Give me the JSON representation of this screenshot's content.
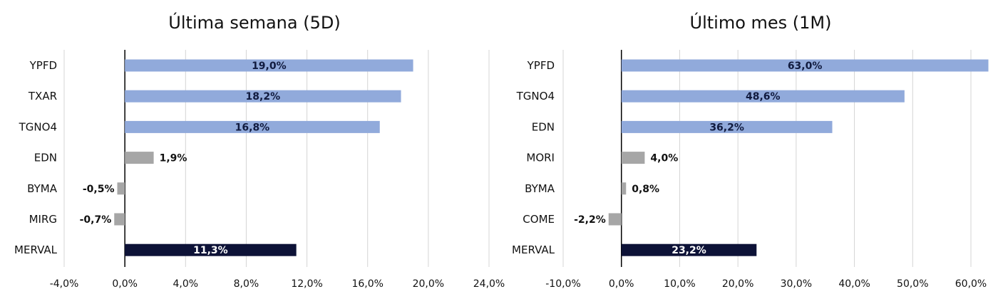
{
  "colors": {
    "top": "#91aadb",
    "mid": "#a6a6a6",
    "index": "#0d1237"
  },
  "chart_data": [
    {
      "type": "bar",
      "orientation": "horizontal",
      "title": "Última semana (5D)",
      "categories": [
        "YPFD",
        "TXAR",
        "TGNO4",
        "EDN",
        "BYMA",
        "MIRG",
        "MERVAL"
      ],
      "values": [
        19.0,
        18.2,
        16.8,
        1.9,
        -0.5,
        -0.7,
        11.3
      ],
      "value_labels": [
        "19,0%",
        "18,2%",
        "16,8%",
        "1,9%",
        "-0,5%",
        "-0,7%",
        "11,3%"
      ],
      "bar_groups": [
        "top",
        "top",
        "top",
        "mid",
        "mid",
        "mid",
        "index"
      ],
      "xlim": [
        -4,
        24
      ],
      "xticks": [
        -4,
        0,
        4,
        8,
        12,
        16,
        20,
        24
      ],
      "xtick_labels": [
        "-4,0%",
        "0,0%",
        "4,0%",
        "8,0%",
        "12,0%",
        "16,0%",
        "20,0%",
        "24,0%"
      ],
      "grid": true
    },
    {
      "type": "bar",
      "orientation": "horizontal",
      "title": "Último mes (1M)",
      "categories": [
        "YPFD",
        "TGNO4",
        "EDN",
        "MORI",
        "BYMA",
        "COME",
        "MERVAL"
      ],
      "values": [
        63.0,
        48.6,
        36.2,
        4.0,
        0.8,
        -2.2,
        23.2
      ],
      "value_labels": [
        "63,0%",
        "48,6%",
        "36,2%",
        "4,0%",
        "0,8%",
        "-2,2%",
        "23,2%"
      ],
      "bar_groups": [
        "top",
        "top",
        "top",
        "mid",
        "mid",
        "mid",
        "index"
      ],
      "xlim": [
        -10,
        60
      ],
      "xticks": [
        -10,
        0,
        10,
        20,
        30,
        40,
        50,
        60
      ],
      "xtick_labels": [
        "-10,0%",
        "0,0%",
        "10,0%",
        "20,0%",
        "30,0%",
        "40,0%",
        "50,0%",
        "60,0%"
      ],
      "grid": true
    }
  ]
}
